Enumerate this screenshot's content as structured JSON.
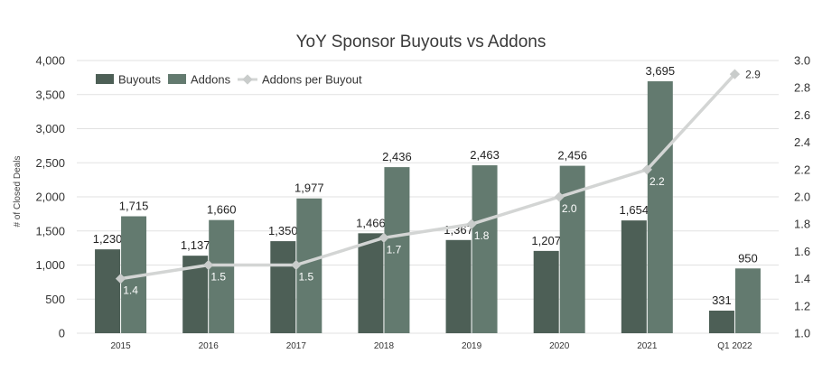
{
  "chart_data": {
    "type": "bar",
    "title": "YoY Sponsor Buyouts vs Addons",
    "ylabel": "# of Closed Deals",
    "ylim": [
      0,
      4000
    ],
    "y2lim": [
      1.0,
      3.0
    ],
    "y_ticks": [
      "0",
      "500",
      "1,000",
      "1,500",
      "2,000",
      "2,500",
      "3,000",
      "3,500",
      "4,000"
    ],
    "y2_ticks": [
      "1.0",
      "1.2",
      "1.4",
      "1.6",
      "1.8",
      "2.0",
      "2.2",
      "2.4",
      "2.6",
      "2.8",
      "3.0"
    ],
    "categories": [
      "2015",
      "2016",
      "2017",
      "2018",
      "2019",
      "2020",
      "2021",
      "Q1 2022"
    ],
    "grid": true,
    "legend_position": "top-left",
    "series": [
      {
        "name": "Buyouts",
        "type": "bar",
        "axis": "left",
        "color": "#4d5f56",
        "values": [
          1230,
          1137,
          1350,
          1466,
          1367,
          1207,
          1654,
          331
        ],
        "labels": [
          "1,230",
          "1,137",
          "1,350",
          "1,466",
          "1,367",
          "1,207",
          "1,654",
          "331"
        ]
      },
      {
        "name": "Addons",
        "type": "bar",
        "axis": "left",
        "color": "#637a6f",
        "values": [
          1715,
          1660,
          1977,
          2436,
          2463,
          2456,
          3695,
          950
        ],
        "labels": [
          "1,715",
          "1,660",
          "1,977",
          "2,436",
          "2,463",
          "2,456",
          "3,695",
          "950"
        ]
      },
      {
        "name": "Addons per Buyout",
        "type": "line",
        "axis": "right",
        "color": "#d3d5d4",
        "values": [
          1.4,
          1.5,
          1.5,
          1.7,
          1.8,
          2.0,
          2.2,
          2.9
        ],
        "labels": [
          "1.4",
          "1.5",
          "1.5",
          "1.7",
          "1.8",
          "2.0",
          "2.2",
          "2.9"
        ]
      }
    ]
  }
}
